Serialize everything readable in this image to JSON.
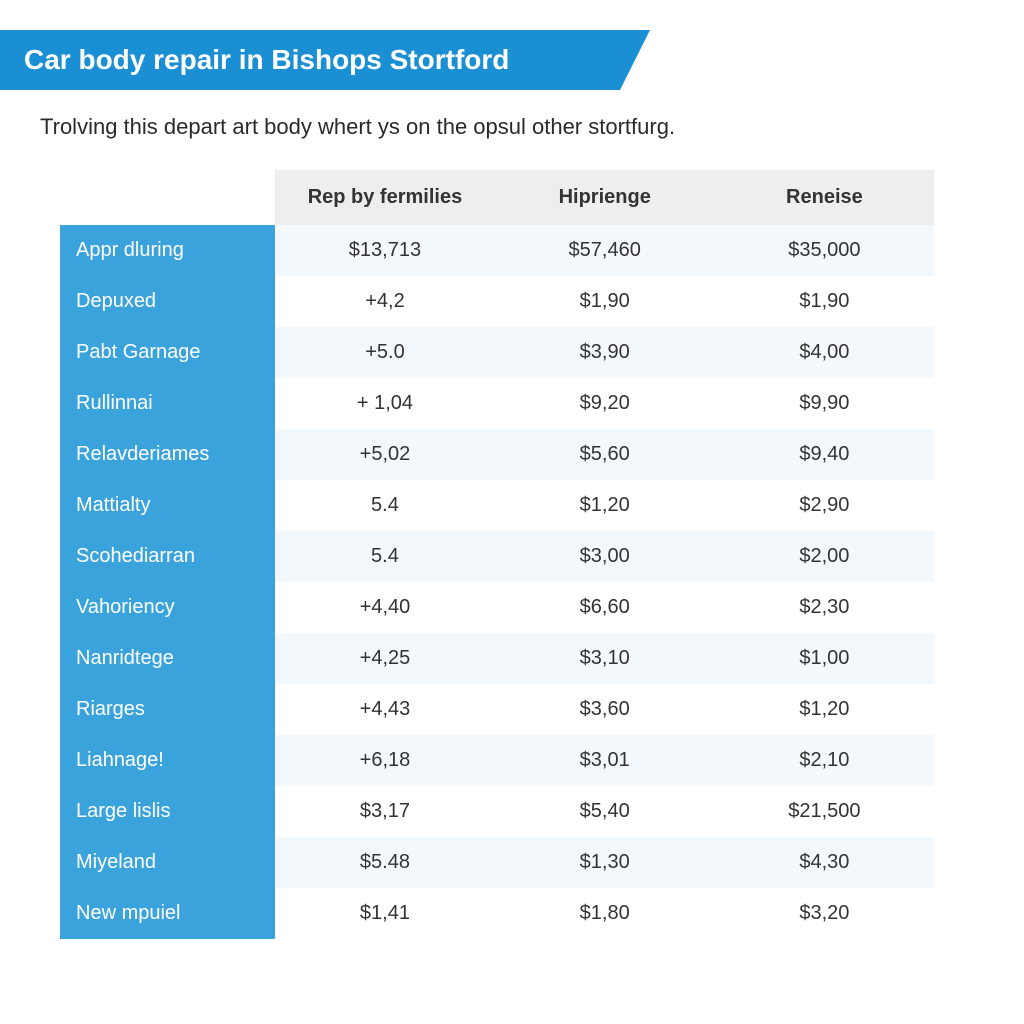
{
  "header": {
    "title": "Car body repair in Bishops Stortford",
    "banner_bg": "#1b8fd4",
    "banner_text_color": "#ffffff",
    "title_fontsize": 28
  },
  "subtitle": "Trolving this depart art body whert ys on the opsul other stortfurg.",
  "table": {
    "type": "table",
    "header_bg": "#eeeeee",
    "header_text_color": "#333333",
    "header_fontsize": 20,
    "row_label_bg": "#3ba3db",
    "row_label_text_color": "#ffffff",
    "row_odd_bg": "#f3f8fc",
    "row_even_bg": "#ffffff",
    "cell_text_color": "#333333",
    "cell_fontsize": 20,
    "columns": [
      "",
      "Rep by fermilies",
      "Hiprienge",
      "Reneise"
    ],
    "rows": [
      [
        "Appr dluring",
        "$13,713",
        "$57,460",
        "$35,000"
      ],
      [
        "Depuxed",
        "+4,2",
        "$1,90",
        "$1,90"
      ],
      [
        "Pabt Garnage",
        "+5.0",
        "$3,90",
        "$4,00"
      ],
      [
        "Rullinnai",
        "+ 1,04",
        "$9,20",
        "$9,90"
      ],
      [
        "Relavderiames",
        "+5,02",
        "$5,60",
        "$9,40"
      ],
      [
        "Mattialty",
        "5.4",
        "$1,20",
        "$2,90"
      ],
      [
        "Scohediarran",
        "5.4",
        "$3,00",
        "$2,00"
      ],
      [
        "Vahoriency",
        "+4,40",
        "$6,60",
        "$2,30"
      ],
      [
        "Nanridtege",
        "+4,25",
        "$3,10",
        "$1,00"
      ],
      [
        "Riarges",
        "+4,43",
        "$3,60",
        "$1,20"
      ],
      [
        "Liahnage!",
        "+6,18",
        "$3,01",
        "$2,10"
      ],
      [
        "Large lislis",
        "$3,17",
        "$5,40",
        "$21,500"
      ],
      [
        "Miyeland",
        "$5.48",
        "$1,30",
        "$4,30"
      ],
      [
        "New mpuiel",
        "$1,41",
        "$1,80",
        "$3,20"
      ]
    ]
  },
  "background_color": "#ffffff"
}
